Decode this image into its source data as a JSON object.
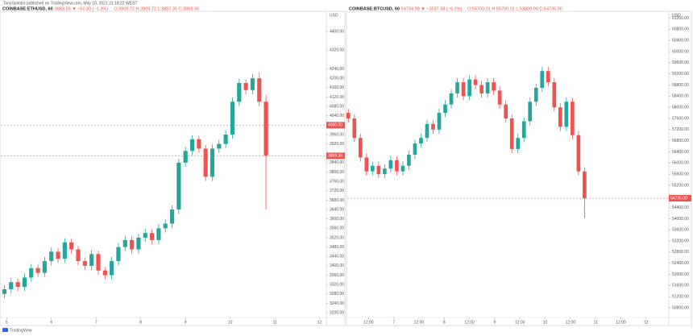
{
  "header": {
    "author_line": "TonySpilotro published on TradingView.com, May 10, 2021 21:18:22 WEST"
  },
  "footer": {
    "brand": "TradingView"
  },
  "chart_data": [
    {
      "type": "candlestick",
      "title": "COINBASE:ETHUSD, 60",
      "info": [
        "3869.55 ▼ −50.80 (−1.3%)",
        "O:3909.72 H:3909.72 L:3857.35 C:3869.36"
      ],
      "y_unit": "USD",
      "up_color": "#26a69a",
      "down_color": "#ef5350",
      "grid": false,
      "xlim": [
        4.87,
        12.15
      ],
      "xticks": [
        5,
        6,
        7,
        8,
        9,
        10,
        11,
        12
      ],
      "ylim": [
        3159,
        4479
      ],
      "yticks": [
        {
          "value": 3200,
          "label": "3200.00"
        },
        {
          "value": 3240,
          "label": "3240.00"
        },
        {
          "value": 3280,
          "label": "3280.00"
        },
        {
          "value": 3320,
          "label": "3320.00"
        },
        {
          "value": 3360,
          "label": "3360.00"
        },
        {
          "value": 3400,
          "label": "3400.00"
        },
        {
          "value": 3440,
          "label": "3440.00"
        },
        {
          "value": 3480,
          "label": "3480.00"
        },
        {
          "value": 3520,
          "label": "3520.00"
        },
        {
          "value": 3560,
          "label": "3560.00"
        },
        {
          "value": 3600,
          "label": "3600.00"
        },
        {
          "value": 3640,
          "label": "3640.00"
        },
        {
          "value": 3680,
          "label": "3680.00"
        },
        {
          "value": 3720,
          "label": "3720.00"
        },
        {
          "value": 3760,
          "label": "3760.00"
        },
        {
          "value": 3800,
          "label": "3800.00"
        },
        {
          "value": 3840,
          "label": "3840.00"
        },
        {
          "value": 3920,
          "label": "3920.00"
        },
        {
          "value": 3960,
          "label": "3960.00"
        },
        {
          "value": 4040,
          "label": "4040.00"
        },
        {
          "value": 4080,
          "label": "4080.00"
        },
        {
          "value": 4120,
          "label": "4120.00"
        },
        {
          "value": 4160,
          "label": "4160.00"
        },
        {
          "value": 4200,
          "label": "4200.00"
        },
        {
          "value": 4240,
          "label": "4240.00"
        },
        {
          "value": 4320,
          "label": "4320.00"
        },
        {
          "value": 4400,
          "label": "4400.00"
        }
      ],
      "reference_line": {
        "value": 4000,
        "label": "4000.00",
        "color": "#ef5350"
      },
      "last_price": 3869.36,
      "x": [
        4.95,
        5.1,
        5.25,
        5.4,
        5.55,
        5.7,
        5.85,
        6.0,
        6.15,
        6.3,
        6.45,
        6.6,
        6.75,
        6.9,
        7.05,
        7.2,
        7.35,
        7.5,
        7.65,
        7.8,
        7.95,
        8.1,
        8.25,
        8.4,
        8.55,
        8.7,
        8.85,
        9.0,
        9.15,
        9.3,
        9.45,
        9.6,
        9.75,
        9.9,
        10.05,
        10.2,
        10.35,
        10.5,
        10.65,
        10.8
      ],
      "open": [
        3280,
        3300,
        3330,
        3310,
        3350,
        3390,
        3370,
        3420,
        3460,
        3430,
        3500,
        3470,
        3420,
        3400,
        3450,
        3380,
        3360,
        3420,
        3480,
        3510,
        3470,
        3520,
        3540,
        3510,
        3560,
        3580,
        3640,
        3840,
        3890,
        3940,
        3900,
        3780,
        3900,
        3920,
        3960,
        4100,
        4180,
        4150,
        4200,
        4100
      ],
      "high": [
        3318,
        3348,
        3345,
        3368,
        3408,
        3405,
        3438,
        3478,
        3475,
        3518,
        3515,
        3485,
        3435,
        3468,
        3465,
        3395,
        3438,
        3498,
        3528,
        3525,
        3538,
        3558,
        3555,
        3578,
        3598,
        3658,
        3858,
        3908,
        3958,
        3955,
        3915,
        3918,
        3938,
        3978,
        4118,
        4198,
        4195,
        4218,
        4225,
        4130
      ],
      "low": [
        3262,
        3282,
        3292,
        3292,
        3332,
        3352,
        3352,
        3402,
        3412,
        3412,
        3452,
        3402,
        3382,
        3382,
        3362,
        3342,
        3342,
        3402,
        3462,
        3452,
        3452,
        3502,
        3492,
        3492,
        3542,
        3562,
        3622,
        3822,
        3872,
        3882,
        3762,
        3762,
        3882,
        3902,
        3942,
        4082,
        4132,
        4132,
        4082,
        3640
      ],
      "close": [
        3300,
        3330,
        3310,
        3350,
        3390,
        3370,
        3420,
        3460,
        3430,
        3500,
        3470,
        3420,
        3400,
        3450,
        3380,
        3360,
        3420,
        3480,
        3510,
        3470,
        3520,
        3540,
        3510,
        3560,
        3580,
        3640,
        3840,
        3890,
        3940,
        3900,
        3780,
        3900,
        3920,
        3960,
        4100,
        4180,
        4150,
        4200,
        4100,
        3870
      ]
    },
    {
      "type": "candlestick",
      "title": "COINBASE:BTCUSD, 60",
      "info": [
        "54734.99 ▼ −3557.58 (−6.1%)",
        "O:55700.01 H:55700.01 L:53800.00 C:54735.00"
      ],
      "y_unit": "USD",
      "up_color": "#26a69a",
      "down_color": "#ef5350",
      "grid": false,
      "xlim": [
        6.08,
        12.45
      ],
      "xticks": [
        {
          "value": 6.5,
          "label": "12:00"
        },
        7,
        {
          "value": 7.5,
          "label": "12:00"
        },
        8,
        {
          "value": 8.5,
          "label": "12:00"
        },
        9,
        {
          "value": 9.5,
          "label": "12:00"
        },
        10,
        {
          "value": 10.5,
          "label": "12:00"
        },
        11,
        {
          "value": 11.5,
          "label": "12:00"
        },
        12
      ],
      "ylim": [
        50280,
        61390
      ],
      "yticks": [
        {
          "value": 50800,
          "label": "50800.00"
        },
        {
          "value": 51200,
          "label": "51200.00"
        },
        {
          "value": 51600,
          "label": "51600.00"
        },
        {
          "value": 52000,
          "label": "52000.00"
        },
        {
          "value": 52400,
          "label": "52400.00"
        },
        {
          "value": 52800,
          "label": "52800.00"
        },
        {
          "value": 53200,
          "label": "53200.00"
        },
        {
          "value": 53600,
          "label": "53600.00"
        },
        {
          "value": 54000,
          "label": "54000.00"
        },
        {
          "value": 54400,
          "label": "54400.00"
        },
        {
          "value": 55200,
          "label": "55200.00"
        },
        {
          "value": 55600,
          "label": "55600.00"
        },
        {
          "value": 56000,
          "label": "56000.00"
        },
        {
          "value": 56400,
          "label": "56400.00"
        },
        {
          "value": 56800,
          "label": "56800.00"
        },
        {
          "value": 57200,
          "label": "57200.00"
        },
        {
          "value": 57600,
          "label": "57600.00"
        },
        {
          "value": 58000,
          "label": "58000.00"
        },
        {
          "value": 58400,
          "label": "58400.00"
        },
        {
          "value": 58800,
          "label": "58800.00"
        },
        {
          "value": 59200,
          "label": "59200.00"
        },
        {
          "value": 59600,
          "label": "59600.00"
        },
        {
          "value": 60000,
          "label": "60000.00"
        },
        {
          "value": 60400,
          "label": "60400.00"
        },
        {
          "value": 60800,
          "label": "60800.00"
        },
        {
          "value": 61200,
          "label": "61200.00"
        }
      ],
      "last_price": {
        "value": 54735,
        "label": "54735.00"
      },
      "x": [
        6.1,
        6.22,
        6.34,
        6.46,
        6.58,
        6.7,
        6.82,
        6.94,
        7.06,
        7.18,
        7.3,
        7.42,
        7.54,
        7.66,
        7.78,
        7.9,
        8.02,
        8.14,
        8.26,
        8.38,
        8.5,
        8.62,
        8.74,
        8.86,
        8.98,
        9.1,
        9.22,
        9.34,
        9.46,
        9.58,
        9.7,
        9.82,
        9.94,
        10.06,
        10.18,
        10.3,
        10.42,
        10.54,
        10.66,
        10.78
      ],
      "open": [
        57800,
        57600,
        56900,
        56200,
        55700,
        55900,
        55600,
        55800,
        56100,
        55700,
        55900,
        56300,
        56700,
        56900,
        57400,
        57200,
        57800,
        58100,
        58500,
        58900,
        58400,
        59000,
        58800,
        58500,
        58900,
        58600,
        58100,
        57600,
        56500,
        56900,
        57500,
        58200,
        58700,
        59300,
        58900,
        58000,
        57300,
        58200,
        57000,
        55700
      ],
      "high": [
        57950,
        57750,
        57050,
        56350,
        56050,
        56050,
        55950,
        56250,
        56250,
        56050,
        56450,
        56850,
        57050,
        57550,
        57550,
        57950,
        58250,
        58650,
        59050,
        59050,
        59150,
        59150,
        58950,
        59050,
        59050,
        58750,
        58250,
        57750,
        57050,
        57650,
        58350,
        58850,
        59450,
        59450,
        59050,
        58150,
        58350,
        58350,
        57150,
        55850
      ],
      "low": [
        57450,
        56750,
        56050,
        55550,
        55550,
        55450,
        55450,
        55650,
        55550,
        55550,
        55750,
        56150,
        56550,
        56750,
        57050,
        57050,
        57650,
        57950,
        58350,
        58250,
        58250,
        58650,
        58350,
        58350,
        58450,
        57950,
        57450,
        56350,
        56350,
        56750,
        57350,
        58050,
        58550,
        58750,
        57850,
        57150,
        57150,
        56850,
        55550,
        54020
      ],
      "close": [
        57600,
        56900,
        56200,
        55700,
        55900,
        55600,
        55800,
        56100,
        55700,
        55900,
        56300,
        56700,
        56900,
        57400,
        57200,
        57800,
        58100,
        58500,
        58900,
        58400,
        59000,
        58800,
        58500,
        58900,
        58600,
        58100,
        57600,
        56500,
        56900,
        57500,
        58200,
        58700,
        59300,
        58900,
        58000,
        57300,
        58200,
        57000,
        55700,
        54735
      ]
    }
  ]
}
